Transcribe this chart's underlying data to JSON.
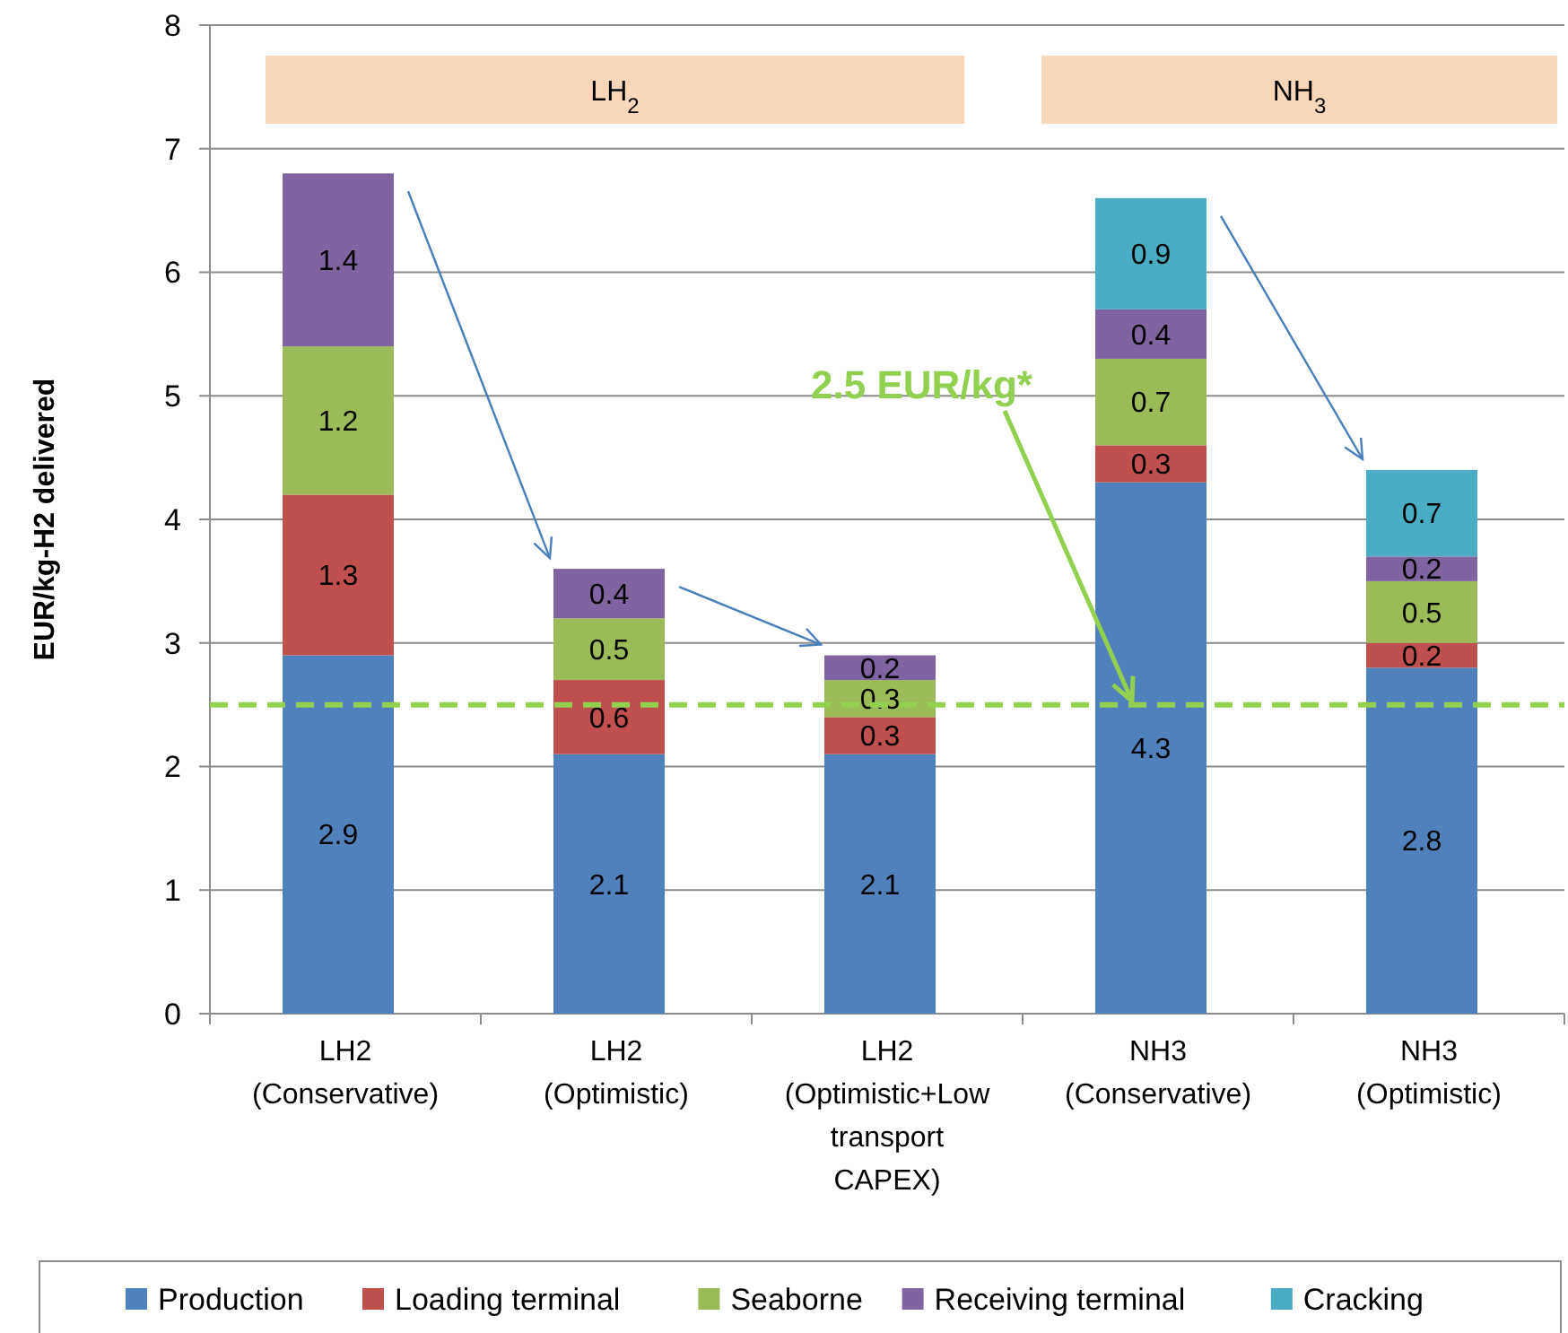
{
  "chart_data": {
    "type": "bar",
    "stacked": true,
    "ylabel": "EUR/kg-H2 delivered",
    "categories": [
      "LH2\n(Conservative)",
      "LH2\n(Optimistic)",
      "LH2\n(Optimistic+Low\ntransport\nCAPEX)",
      "NH3\n(Conservative)",
      "NH3\n(Optimistic)"
    ],
    "series": [
      {
        "name": "Production",
        "color": "#4f81bd",
        "values": [
          2.9,
          2.1,
          2.1,
          4.3,
          2.8
        ]
      },
      {
        "name": "Loading terminal",
        "color": "#c0504d",
        "values": [
          1.3,
          0.6,
          0.3,
          0.3,
          0.2
        ]
      },
      {
        "name": "Seaborne",
        "color": "#9bbb59",
        "values": [
          1.2,
          0.5,
          0.3,
          0.7,
          0.5
        ]
      },
      {
        "name": "Receiving terminal",
        "color": "#8064a2",
        "values": [
          1.4,
          0.4,
          0.2,
          0.4,
          0.2
        ]
      },
      {
        "name": "Cracking",
        "color": "#4bacc6",
        "values": [
          null,
          null,
          null,
          0.9,
          0.7
        ]
      }
    ],
    "ylim": [
      0,
      8
    ],
    "yticks": [
      0,
      1,
      2,
      3,
      4,
      5,
      6,
      7,
      8
    ],
    "grid": "y",
    "legend": "bottom",
    "data_labels": true,
    "ref_lines": [
      {
        "axis": "y",
        "value": 2.5,
        "label": "2.5 EUR/kg*",
        "color": "#92d050",
        "line_style": "dashed"
      }
    ],
    "annotations": [
      "LH$_{2}$",
      "NH$_{3}$"
    ]
  }
}
